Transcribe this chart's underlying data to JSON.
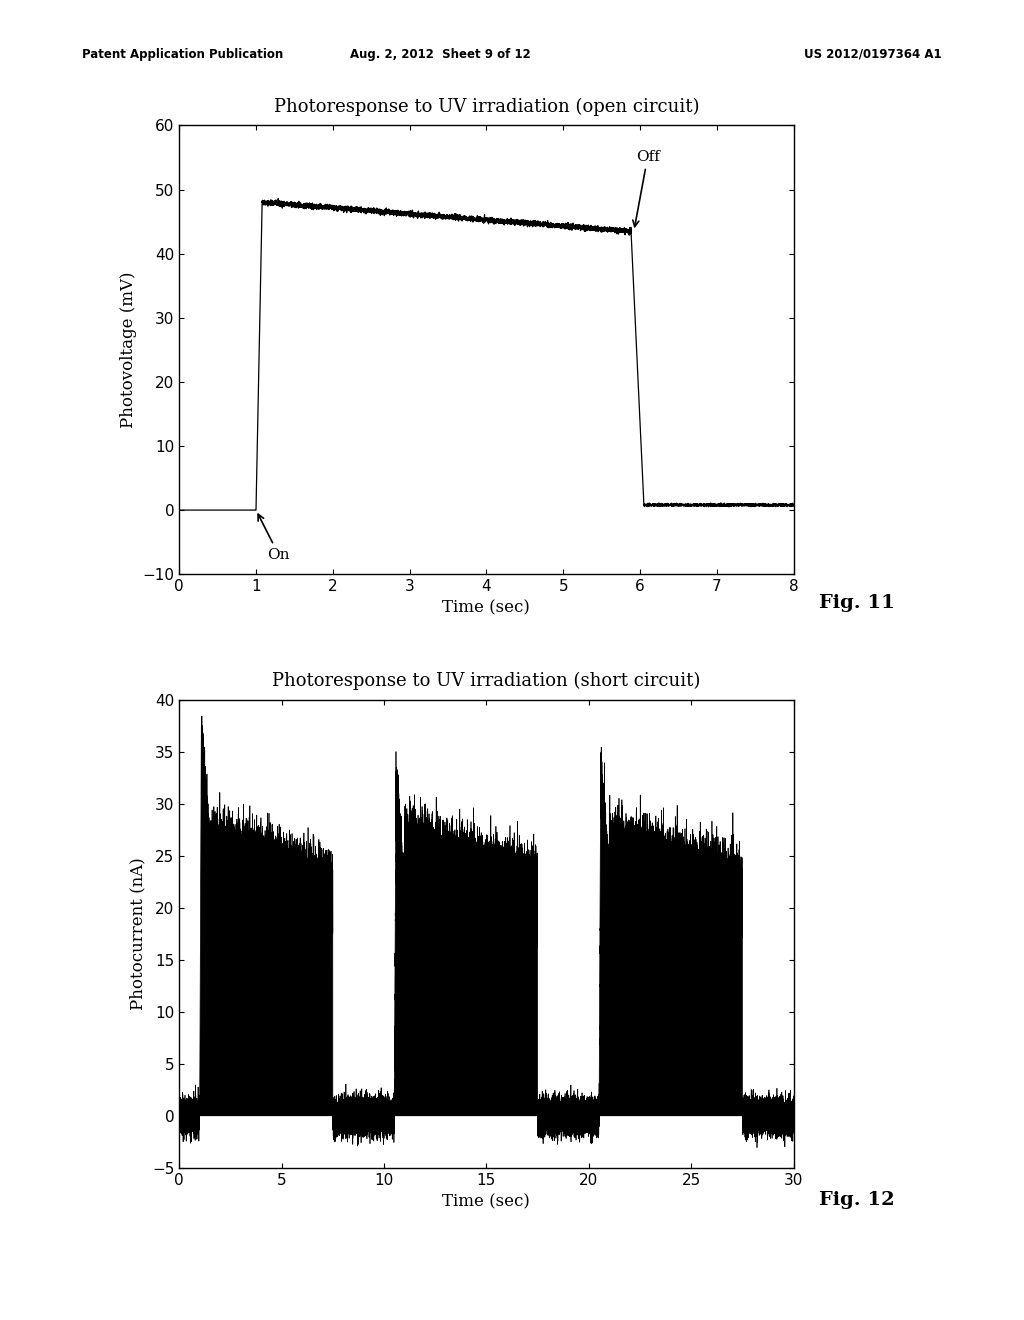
{
  "background_color": "#ffffff",
  "header_left": "Patent Application Publication",
  "header_mid": "Aug. 2, 2012  Sheet 9 of 12",
  "header_right": "US 2012/0197364 A1",
  "fig11": {
    "title": "Photoresponse to UV irradiation (open circuit)",
    "xlabel": "Time (sec)",
    "ylabel": "Photovoltage (mV)",
    "xlim": [
      0,
      8
    ],
    "ylim": [
      -10,
      60
    ],
    "xticks": [
      0,
      1,
      2,
      3,
      4,
      5,
      6,
      7,
      8
    ],
    "yticks": [
      -10,
      0,
      10,
      20,
      30,
      40,
      50,
      60
    ],
    "on_label": "On",
    "off_label": "Off",
    "fig_label": "Fig. 11"
  },
  "fig12": {
    "title": "Photoresponse to UV irradiation (short circuit)",
    "xlabel": "Time (sec)",
    "ylabel": "Photocurrent (nA)",
    "xlim": [
      0,
      30
    ],
    "ylim": [
      -5,
      40
    ],
    "xticks": [
      0,
      5,
      10,
      15,
      20,
      25,
      30
    ],
    "yticks": [
      -5,
      0,
      5,
      10,
      15,
      20,
      25,
      30,
      35,
      40
    ],
    "fig_label": "Fig. 12"
  }
}
